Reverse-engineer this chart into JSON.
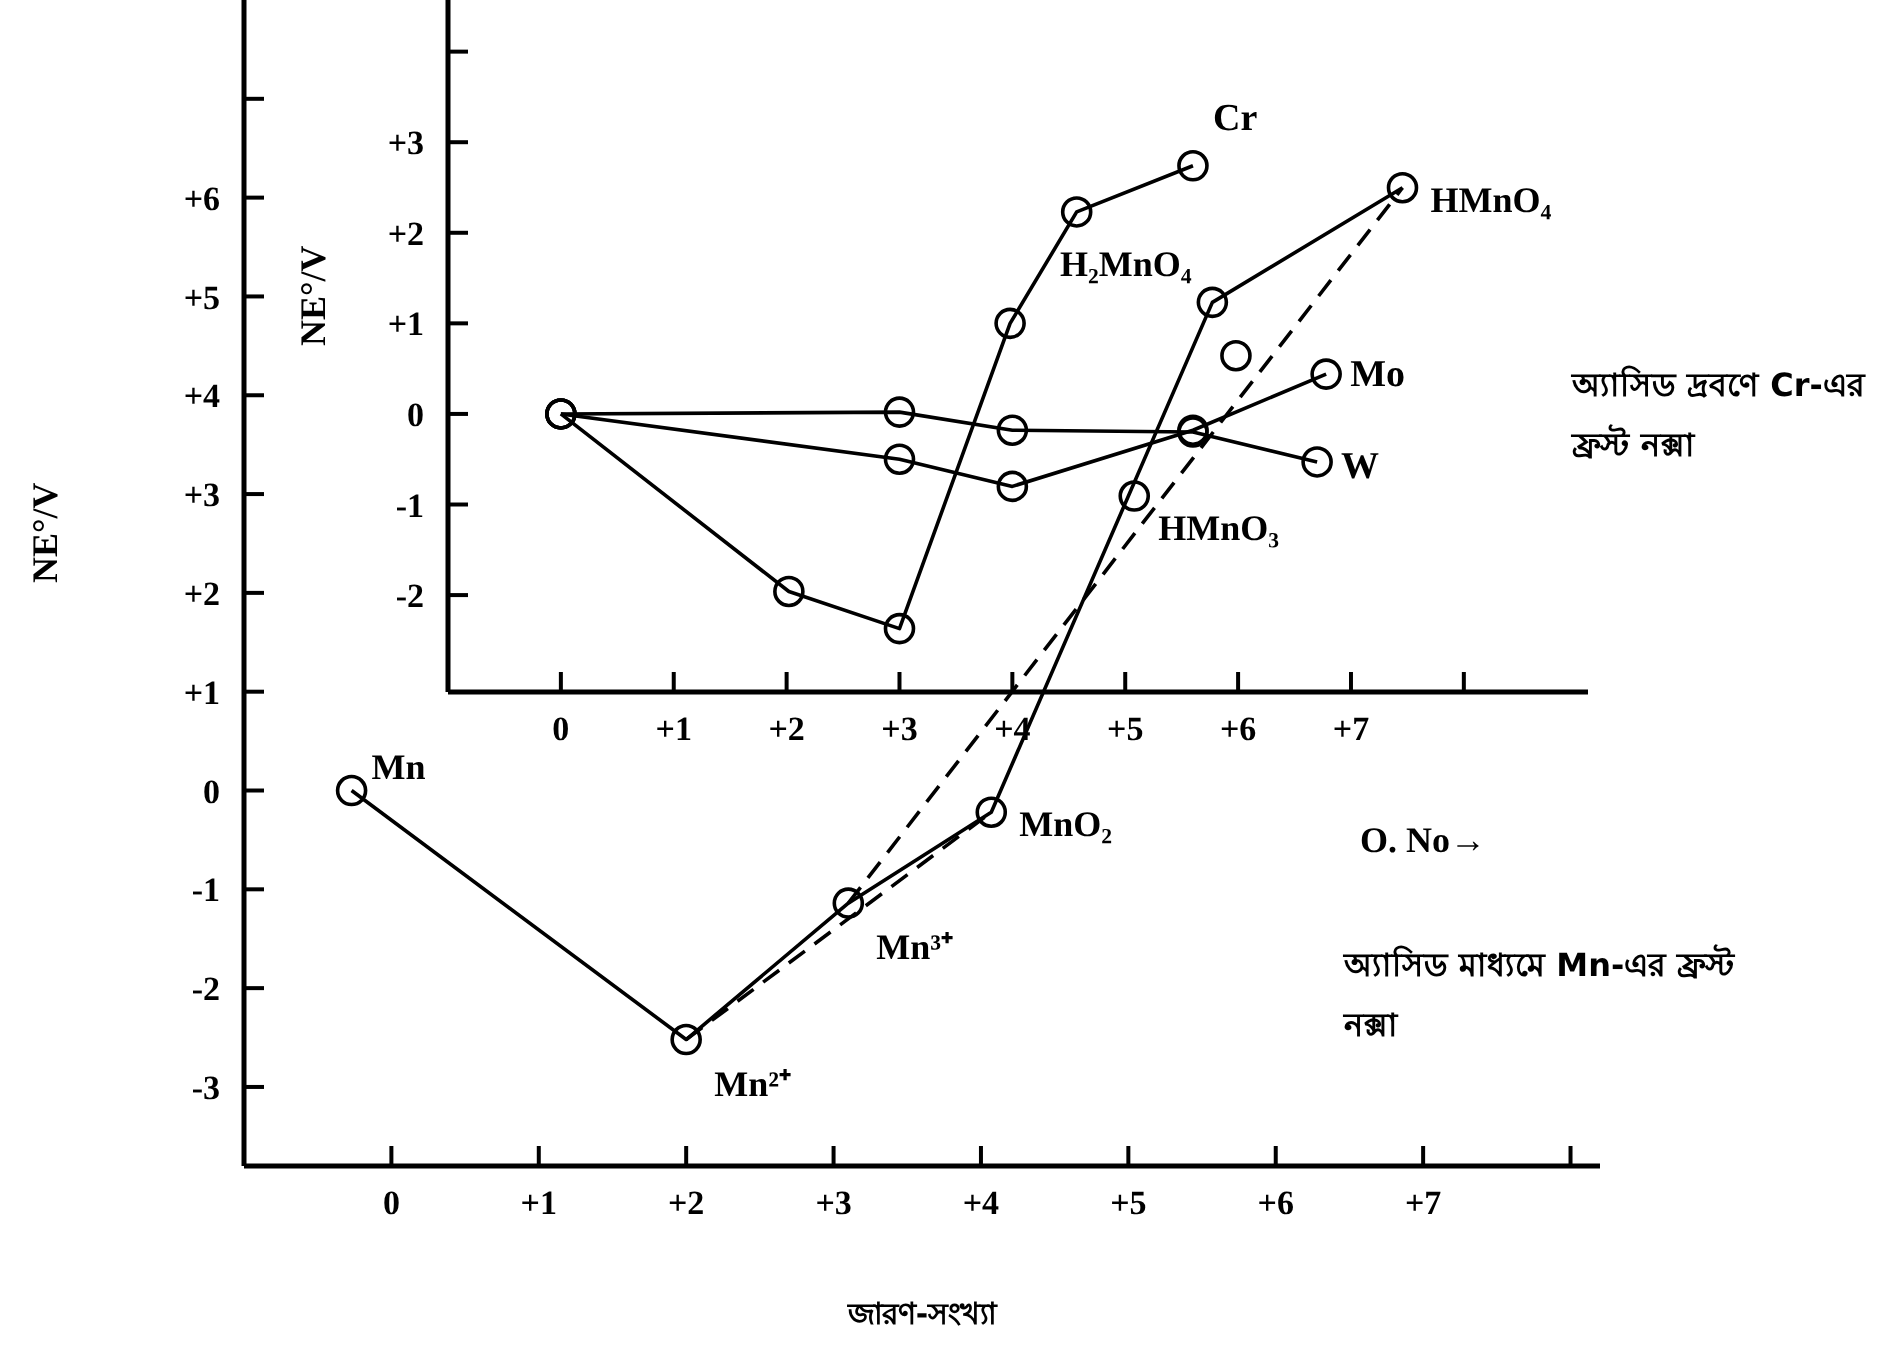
{
  "chart_data": [
    {
      "type": "line",
      "xlabel": "জারণ-সংখ্যা",
      "ylabel": "NE°/V",
      "xlim": [
        -1,
        8.2
      ],
      "ylim": [
        -3.8,
        8
      ],
      "xticks": [
        {
          "value": 0,
          "label": "0"
        },
        {
          "value": 1,
          "label": "+1"
        },
        {
          "value": 2,
          "label": "+2"
        },
        {
          "value": 3,
          "label": "+3"
        },
        {
          "value": 4,
          "label": "+4"
        },
        {
          "value": 5,
          "label": "+5"
        },
        {
          "value": 6,
          "label": "+6"
        },
        {
          "value": 7,
          "label": "+7"
        },
        {
          "value": 8,
          "label": null
        }
      ],
      "yticks": [
        {
          "value": -3,
          "label": "-3"
        },
        {
          "value": -2,
          "label": "-2"
        },
        {
          "value": -1,
          "label": "-1"
        },
        {
          "value": 0,
          "label": "0"
        },
        {
          "value": 1,
          "label": "+1"
        },
        {
          "value": 2,
          "label": "+2"
        },
        {
          "value": 3,
          "label": "+3"
        },
        {
          "value": 4,
          "label": "+4"
        },
        {
          "value": 5,
          "label": "+5"
        },
        {
          "value": 6,
          "label": "+6"
        },
        {
          "value": 7,
          "label": null
        }
      ],
      "marker": "circle",
      "legend": false,
      "grid": false,
      "series": [
        {
          "color": "#000000",
          "x": [
            -0.27,
            2,
            3.1,
            4.07,
            5.57,
            6.86
          ],
          "values": [
            0,
            -2.52,
            -1.14,
            -0.22,
            4.94,
            6.1
          ]
        },
        {
          "color": "#000000",
          "line_style": "dashed",
          "marker": "none",
          "x": [
            3.1,
            6.86
          ],
          "values": [
            -1.14,
            6.1
          ]
        },
        {
          "color": "#000000",
          "line_style": "dashed",
          "marker": "none",
          "x": [
            2,
            4.07
          ],
          "values": [
            -2.52,
            -0.22
          ]
        },
        {
          "type": "scatter",
          "color": "#000000",
          "x": [
            5.04,
            5.73
          ],
          "values": [
            2.98,
            4.4
          ]
        }
      ],
      "annotations": [
        {
          "text": "Mn",
          "x": -0.27,
          "y": 0
        },
        {
          "text": "Mn²⁺",
          "x": 2,
          "y": -2.52
        },
        {
          "text": "Mn³⁺",
          "x": 3.1,
          "y": -1.14
        },
        {
          "text": "MnO₂",
          "x": 4.07,
          "y": -0.22
        },
        {
          "text": "HMnO₄",
          "x": 6.86,
          "y": 6.1
        },
        {
          "text": "HMnO₃",
          "x": 5.04,
          "y": 2.98
        },
        {
          "text": "H₂MnO₄",
          "x": 5.73,
          "y": 4.4
        },
        "অ্যাসিড মাধ্যমে Mn-এর ফ্রস্ট নক্সা"
      ]
    },
    {
      "type": "line",
      "xlabel": "O. No→",
      "ylabel": "NE°/V",
      "xlim": [
        -1,
        9.1
      ],
      "ylim": [
        -3.07,
        4.57
      ],
      "xticks": [
        {
          "value": 0,
          "label": "0"
        },
        {
          "value": 1,
          "label": "+1"
        },
        {
          "value": 2,
          "label": "+2"
        },
        {
          "value": 3,
          "label": "+3"
        },
        {
          "value": 4,
          "label": "+4"
        },
        {
          "value": 5,
          "label": "+5"
        },
        {
          "value": 6,
          "label": "+6"
        },
        {
          "value": 7,
          "label": "+7"
        },
        {
          "value": 8,
          "label": null
        }
      ],
      "yticks": [
        {
          "value": -2,
          "label": "-2"
        },
        {
          "value": -1,
          "label": "-1"
        },
        {
          "value": 0,
          "label": "0"
        },
        {
          "value": 1,
          "label": "+1"
        },
        {
          "value": 2,
          "label": "+2"
        },
        {
          "value": 3,
          "label": "+3"
        },
        {
          "value": 4,
          "label": null
        }
      ],
      "marker": "circle",
      "legend": false,
      "grid": false,
      "series": [
        {
          "name": "Cr",
          "color": "#000000",
          "x": [
            0,
            2.02,
            3,
            3.98,
            4.57,
            5.6
          ],
          "values": [
            0,
            -1.96,
            -2.37,
            1.0,
            2.23,
            2.74
          ]
        },
        {
          "name": "Mo",
          "color": "#000000",
          "x": [
            0,
            3,
            4,
            5.6,
            6.78
          ],
          "values": [
            0,
            -0.5,
            -0.8,
            -0.18,
            0.44
          ]
        },
        {
          "name": "W",
          "color": "#000000",
          "x": [
            0,
            3,
            4,
            5.6,
            6.7
          ],
          "values": [
            0,
            0.02,
            -0.18,
            -0.2,
            -0.53
          ]
        }
      ],
      "annotations": [
        "অ্যাসিড দ্রবণে Cr-এর ফ্রস্ট নক্সা"
      ]
    }
  ]
}
